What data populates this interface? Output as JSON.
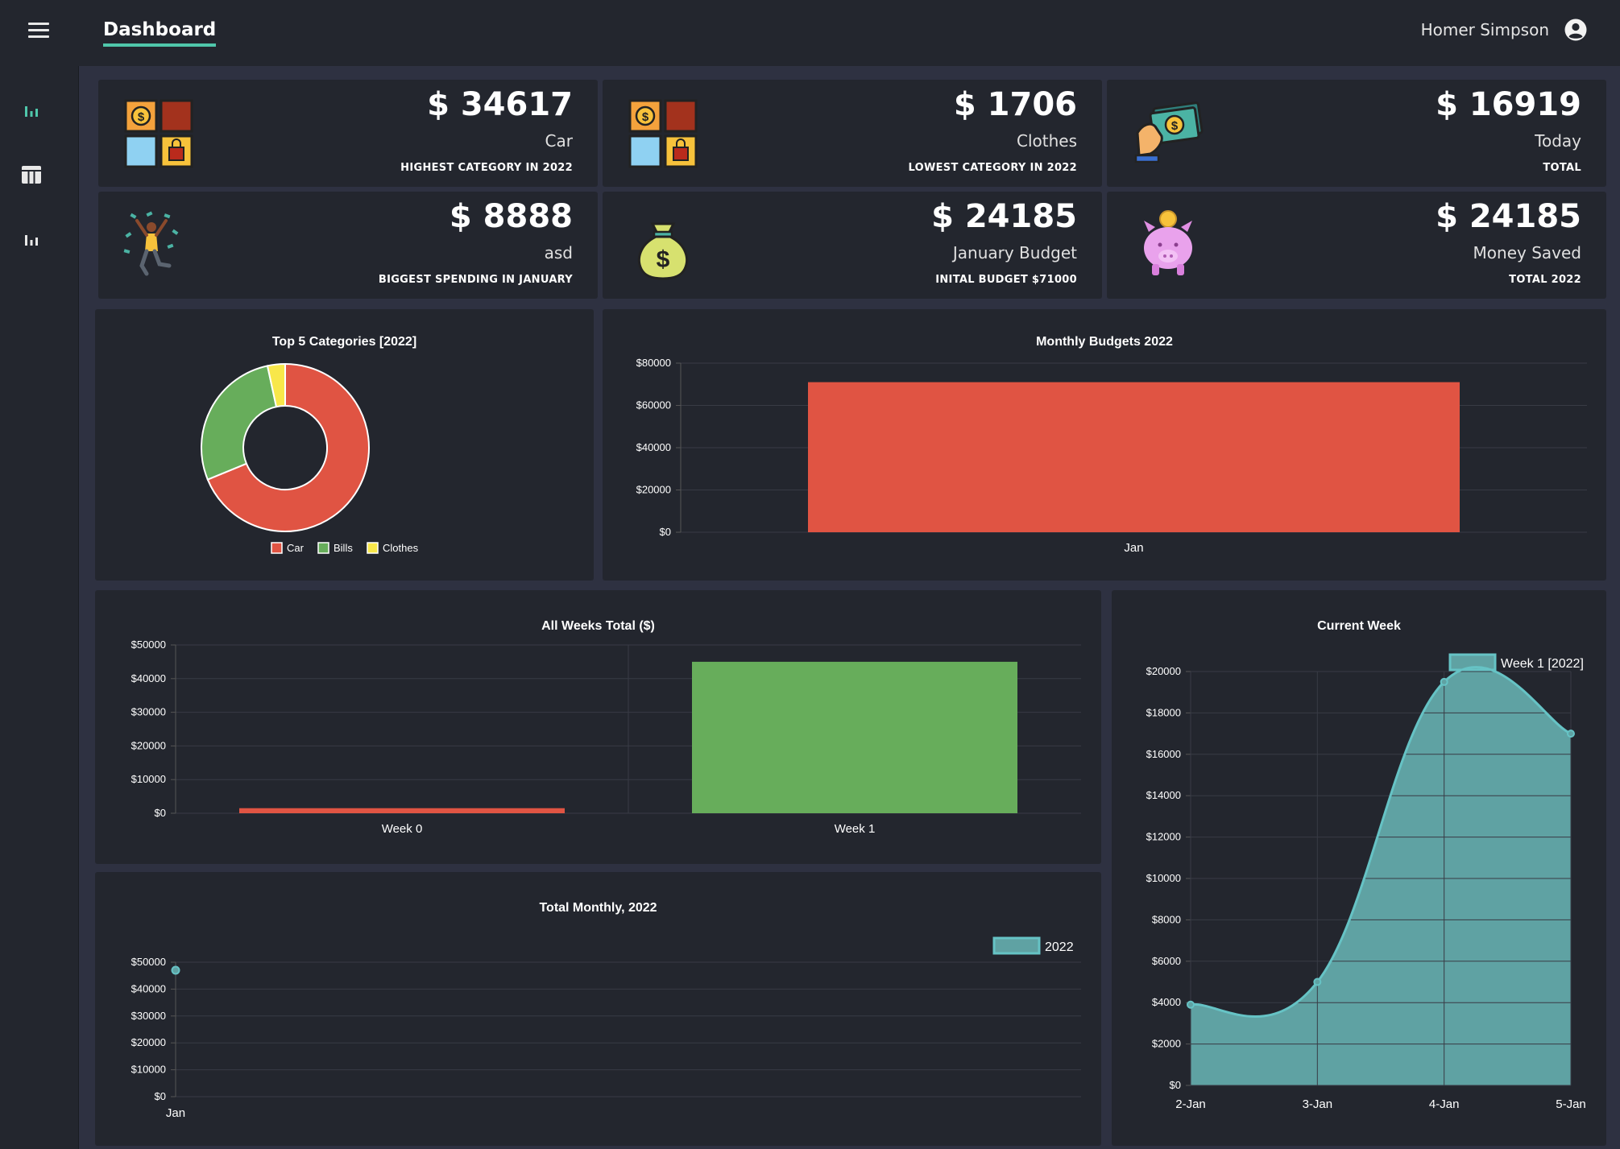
{
  "header": {
    "app_title": "Dashboard",
    "user_name": "Homer Simpson"
  },
  "sidebar": {
    "items": [
      {
        "icon": "chart-icon",
        "active": true
      },
      {
        "icon": "table-icon",
        "active": false
      },
      {
        "icon": "chart-icon",
        "active": false
      }
    ]
  },
  "stats": [
    {
      "amount": "$ 34617",
      "label": "Car",
      "caption": "HIGHEST CATEGORY IN 2022",
      "icon": "categories-icon"
    },
    {
      "amount": "$ 1706",
      "label": "Clothes",
      "caption": "LOWEST CATEGORY IN 2022",
      "icon": "categories-icon"
    },
    {
      "amount": "$ 16919",
      "label": "Today",
      "caption": "TOTAL",
      "icon": "cash-hand-icon"
    },
    {
      "amount": "$ 8888",
      "label": "asd",
      "caption": "BIGGEST SPENDING IN JANUARY",
      "icon": "celebrating-person-icon"
    },
    {
      "amount": "$ 24185",
      "label": "January Budget",
      "caption": "INITAL BUDGET $71000",
      "icon": "money-bag-icon"
    },
    {
      "amount": "$ 24185",
      "label": "Money Saved",
      "caption": "TOTAL 2022",
      "icon": "piggy-bank-icon"
    }
  ],
  "colors": {
    "accent": "#4fc7ab",
    "red": "#e05443",
    "green": "#67ad5b",
    "yellow": "#f8e74a",
    "teal": "#5fa2a3",
    "teal_line": "#66c3c5"
  },
  "chart_data": [
    {
      "id": "donut",
      "type": "pie",
      "title": "Top 5 Categories [2022]",
      "categories": [
        "Car",
        "Bills",
        "Clothes"
      ],
      "values": [
        34617,
        14000,
        1706
      ],
      "colors": [
        "#e05443",
        "#67ad5b",
        "#f8e74a"
      ],
      "legend": "bottom"
    },
    {
      "id": "monthly_budgets",
      "type": "bar",
      "title": "Monthly Budgets 2022",
      "categories": [
        "Jan"
      ],
      "values": [
        71000
      ],
      "ylim": [
        0,
        80000
      ],
      "yticks": [
        "$80000",
        "$60000",
        "$40000",
        "$20000",
        "$0"
      ],
      "colors": [
        "#e05443"
      ]
    },
    {
      "id": "weeks_total",
      "type": "bar",
      "title": "All Weeks Total ($)",
      "categories": [
        "Week 0",
        "Week 1"
      ],
      "values": [
        1500,
        45000
      ],
      "ylim": [
        0,
        50000
      ],
      "yticks": [
        "$50000",
        "$40000",
        "$30000",
        "$20000",
        "$10000",
        "$0"
      ],
      "colors": [
        "#e05443",
        "#67ad5b"
      ]
    },
    {
      "id": "total_monthly",
      "type": "line",
      "title": "Total Monthly, 2022",
      "categories": [
        "Jan"
      ],
      "series": [
        {
          "name": "2022",
          "values": [
            47000
          ]
        }
      ],
      "ylim": [
        0,
        50000
      ],
      "yticks": [
        "$50000",
        "$40000",
        "$30000",
        "$20000",
        "$10000",
        "$0"
      ],
      "legend": "top-right"
    },
    {
      "id": "current_week",
      "type": "area",
      "title": "Current Week",
      "categories": [
        "2-Jan",
        "3-Jan",
        "4-Jan",
        "5-Jan"
      ],
      "series": [
        {
          "name": "Week 1 [2022]",
          "values": [
            3900,
            5000,
            19500,
            17000
          ]
        }
      ],
      "ylim": [
        0,
        20000
      ],
      "yticks": [
        "$20000",
        "$18000",
        "$16000",
        "$14000",
        "$12000",
        "$10000",
        "$8000",
        "$6000",
        "$4000",
        "$2000",
        "$0"
      ],
      "legend": "top-right"
    }
  ]
}
